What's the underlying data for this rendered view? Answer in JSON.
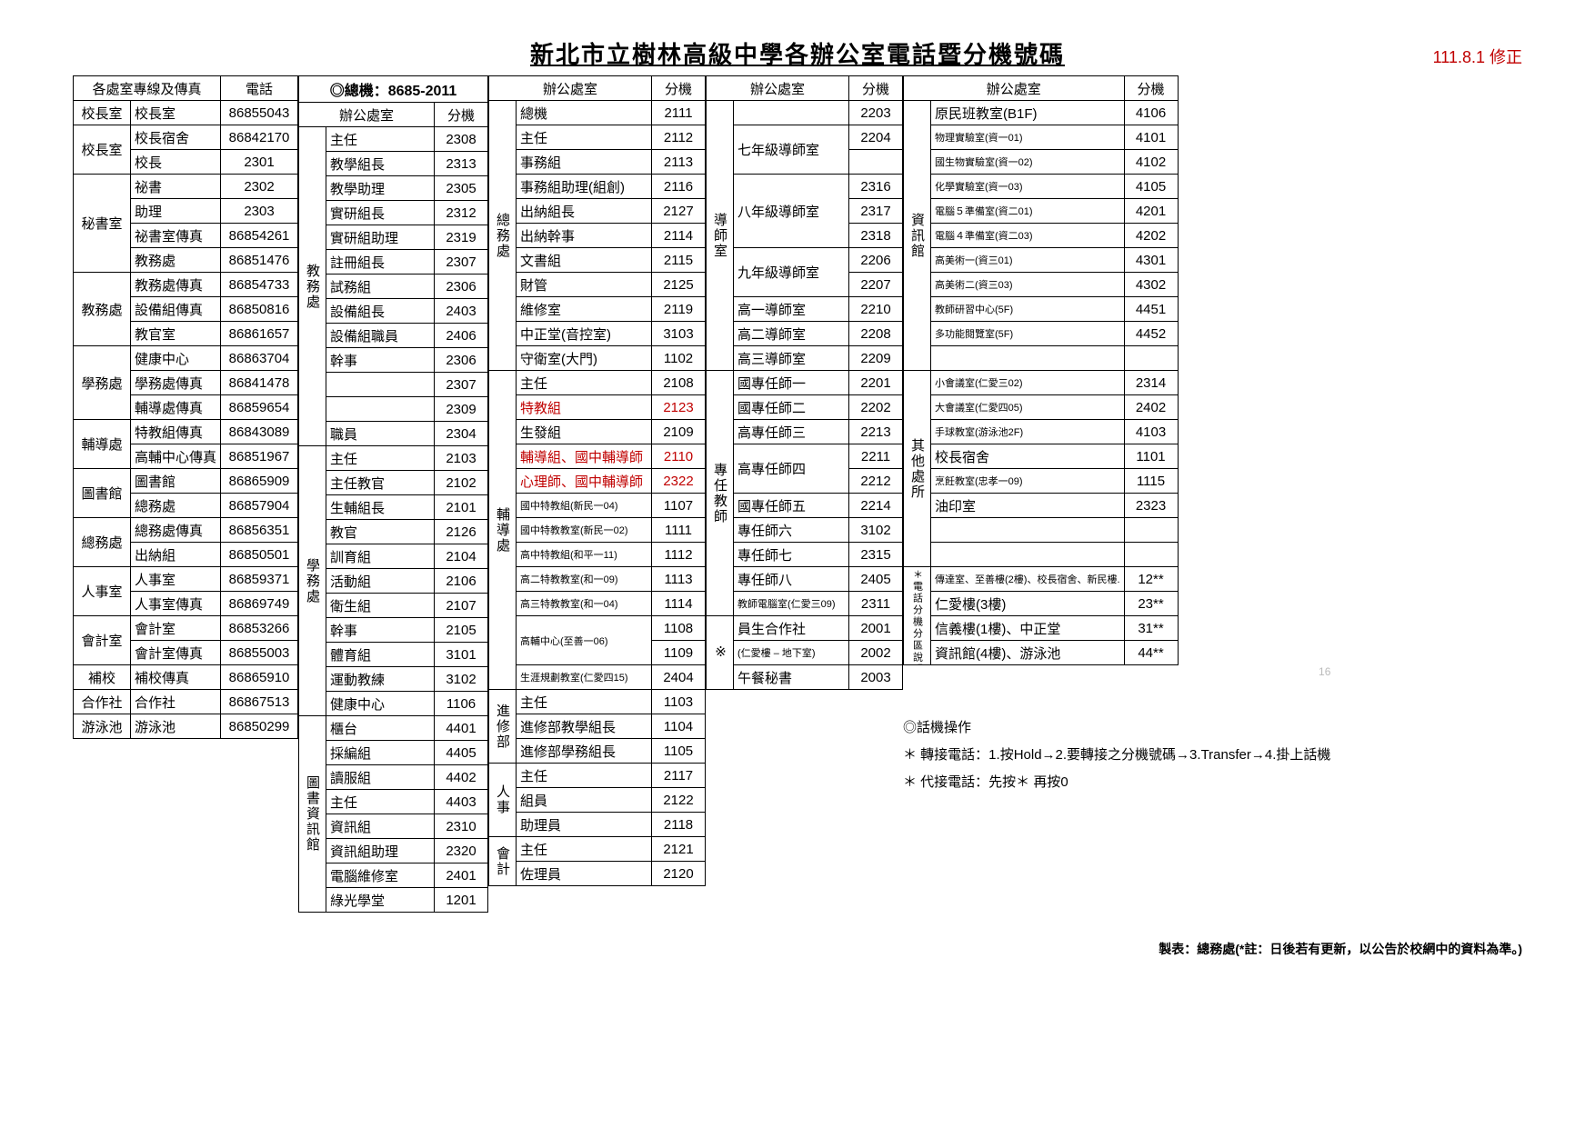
{
  "title": "新北市立樹林高級中學各辦公室電話暨分機號碼",
  "date_note": "111.8.1 修正",
  "main_ext": "◎總機：8685-2011",
  "headers": {
    "dept_line_fax": "各處室專線及傳真",
    "phone": "電話",
    "office": "辦公處室",
    "ext": "分機"
  },
  "col1": [
    {
      "dept": "校長室",
      "name": "校長室",
      "tel": "86855043"
    },
    {
      "dept": "校長室",
      "name": "校長宿舍",
      "tel": "86842170"
    },
    {
      "dept": "",
      "name": "校長",
      "tel": "2301"
    },
    {
      "dept": "秘書室",
      "name": "祕書",
      "tel": "2302"
    },
    {
      "dept": "",
      "name": "助理",
      "tel": "2303"
    },
    {
      "dept": "",
      "name": "祕書室傳真",
      "tel": "86854261"
    },
    {
      "dept": "",
      "name": "教務處",
      "tel": "86851476"
    },
    {
      "dept": "教務處",
      "name": "教務處傳真",
      "tel": "86854733"
    },
    {
      "dept": "",
      "name": "設備組傳真",
      "tel": "86850816"
    },
    {
      "dept": "",
      "name": "教官室",
      "tel": "86861657"
    },
    {
      "dept": "學務處",
      "name": "健康中心",
      "tel": "86863704"
    },
    {
      "dept": "",
      "name": "學務處傳真",
      "tel": "86841478"
    },
    {
      "dept": "",
      "name": "輔導處傳真",
      "tel": "86859654"
    },
    {
      "dept": "輔導處",
      "name": "特教組傳真",
      "tel": "86843089"
    },
    {
      "dept": "",
      "name": "高輔中心傳真",
      "tel": "86851967"
    },
    {
      "dept": "圖書館",
      "name": "圖書館",
      "tel": "86865909"
    },
    {
      "dept": "",
      "name": "總務處",
      "tel": "86857904"
    },
    {
      "dept": "總務處",
      "name": "總務處傳真",
      "tel": "86856351"
    },
    {
      "dept": "",
      "name": "出納組",
      "tel": "86850501"
    },
    {
      "dept": "人事室",
      "name": "人事室",
      "tel": "86859371"
    },
    {
      "dept": "",
      "name": "人事室傳真",
      "tel": "86869749"
    },
    {
      "dept": "會計室",
      "name": "會計室",
      "tel": "86853266"
    },
    {
      "dept": "",
      "name": "會計室傳真",
      "tel": "86855003"
    },
    {
      "dept": "補校",
      "name": "補校傳真",
      "tel": "86865910"
    },
    {
      "dept": "合作社",
      "name": "合作社",
      "tel": "86867513"
    },
    {
      "dept": "游泳池",
      "name": "游泳池",
      "tel": "86850299"
    }
  ],
  "block2": {
    "groups": [
      {
        "vlabel": "教務處",
        "rows": [
          {
            "n": "主任",
            "e": "2308"
          },
          {
            "n": "教學組長",
            "e": "2313"
          },
          {
            "n": "教學助理",
            "e": "2305"
          },
          {
            "n": "實研組長",
            "e": "2312"
          },
          {
            "n": "實研組助理",
            "e": "2319"
          },
          {
            "n": "註冊組長",
            "e": "2307"
          },
          {
            "n": "試務組",
            "e": "2306"
          },
          {
            "n": "設備組長",
            "e": "2403"
          },
          {
            "n": "設備組職員",
            "e": "2406"
          },
          {
            "n": "幹事",
            "e": "2306"
          },
          {
            "n": "",
            "e": "2307"
          },
          {
            "n": "",
            "e": "2309"
          },
          {
            "n": "職員",
            "e": "2304"
          }
        ]
      },
      {
        "vlabel": "學務處",
        "rows": [
          {
            "n": "主任",
            "e": "2103"
          },
          {
            "n": "主任教官",
            "e": "2102"
          },
          {
            "n": "生輔組長",
            "e": "2101"
          },
          {
            "n": "教官",
            "e": "2126"
          },
          {
            "n": "訓育組",
            "e": "2104"
          },
          {
            "n": "活動組",
            "e": "2106"
          },
          {
            "n": "衛生組",
            "e": "2107"
          },
          {
            "n": "幹事",
            "e": "2105"
          },
          {
            "n": "體育組",
            "e": "3101"
          },
          {
            "n": "運動教練",
            "e": "3102"
          },
          {
            "n": "健康中心",
            "e": "1106"
          }
        ]
      },
      {
        "vlabel": "圖書資訊館",
        "rows": [
          {
            "n": "櫃台",
            "e": "4401"
          },
          {
            "n": "採編組",
            "e": "4405"
          },
          {
            "n": "讀服組",
            "e": "4402"
          },
          {
            "n": "主任",
            "e": "4403"
          },
          {
            "n": "資訊組",
            "e": "2310"
          },
          {
            "n": "資訊組助理",
            "e": "2320"
          },
          {
            "n": "電腦維修室",
            "e": "2401"
          },
          {
            "n": "綠光學堂",
            "e": "1201"
          }
        ]
      }
    ]
  },
  "block3": {
    "groups": [
      {
        "vlabel": "總務處",
        "rows": [
          {
            "n": "總機",
            "e": "2111"
          },
          {
            "n": "主任",
            "e": "2112"
          },
          {
            "n": "事務組",
            "e": "2113"
          },
          {
            "n": "事務組助理(組創)",
            "e": "2116"
          },
          {
            "n": "出納組長",
            "e": "2127"
          },
          {
            "n": "出納幹事",
            "e": "2114"
          },
          {
            "n": "文書組",
            "e": "2115"
          },
          {
            "n": "財管",
            "e": "2125"
          },
          {
            "n": "維修室",
            "e": "2119"
          },
          {
            "n": "中正堂(音控室)",
            "e": "3103"
          },
          {
            "n": "守衛室(大門)",
            "e": "1102"
          }
        ]
      },
      {
        "vlabel": "輔導處",
        "rows": [
          {
            "n": "主任",
            "e": "2108"
          },
          {
            "n": "特教組",
            "e": "2123",
            "red": true
          },
          {
            "n": "生發組",
            "e": "2109"
          },
          {
            "n": "輔導組、國中輔導師",
            "e": "2110",
            "red": true
          },
          {
            "n": "心理師、國中輔導師",
            "e": "2322",
            "red": true
          },
          {
            "n": "國中特教組(新民一04)",
            "e": "1107",
            "sm": true
          },
          {
            "n": "國中特教教室(新民一02)",
            "e": "1111",
            "sm": true
          },
          {
            "n": "高中特教組(和平一11)",
            "e": "1112",
            "sm": true
          },
          {
            "n": "高二特教教室(和一09)",
            "e": "1113",
            "sm": true
          },
          {
            "n": "高三特教教室(和一04)",
            "e": "1114",
            "sm": true
          },
          {
            "n": "高輔中心(至善一06)",
            "e": "1108",
            "sm": true,
            "rs": 2
          },
          {
            "e": "1109"
          },
          {
            "n": "生涯規劃教室(仁愛四15)",
            "e": "2404",
            "sm": true
          }
        ]
      },
      {
        "vlabel": "進修部",
        "rows": [
          {
            "n": "主任",
            "e": "1103"
          },
          {
            "n": "進修部教學組長",
            "e": "1104"
          },
          {
            "n": "進修部學務組長",
            "e": "1105"
          }
        ]
      },
      {
        "vlabel": "人事",
        "rows": [
          {
            "n": "主任",
            "e": "2117"
          },
          {
            "n": "組員",
            "e": "2122"
          },
          {
            "n": "助理員",
            "e": "2118"
          }
        ]
      },
      {
        "vlabel": "會計",
        "rows": [
          {
            "n": "主任",
            "e": "2121"
          },
          {
            "n": "佐理員",
            "e": "2120"
          }
        ]
      }
    ]
  },
  "block4": {
    "groups": [
      {
        "vlabel": "導師室",
        "rows": [
          {
            "n": "",
            "e": "2203"
          },
          {
            "n": "七年級導師室",
            "e": "2204",
            "rs": 2
          },
          {
            "e": ""
          },
          {
            "n": "八年級導師室",
            "e": "2316",
            "rs": 3
          },
          {
            "e": "2317"
          },
          {
            "e": "2318"
          },
          {
            "n": "九年級導師室",
            "e": "2206",
            "rs": 2
          },
          {
            "e": "2207"
          },
          {
            "n": "高一導師室",
            "e": "2210"
          },
          {
            "n": "高二導師室",
            "e": "2208"
          },
          {
            "n": "高三導師室",
            "e": "2209"
          }
        ]
      },
      {
        "vlabel": "專任教師",
        "rows": [
          {
            "n": "國專任師一",
            "e": "2201"
          },
          {
            "n": "國專任師二",
            "e": "2202"
          },
          {
            "n": "高專任師三",
            "e": "2213"
          },
          {
            "n": "高專任師四",
            "e": "2211",
            "rs": 2
          },
          {
            "e": "2212"
          },
          {
            "n": "國專任師五",
            "e": "2214"
          },
          {
            "n": "專任師六",
            "e": "3102"
          },
          {
            "n": "專任師七",
            "e": "2315"
          },
          {
            "n": "專任師八",
            "e": "2405"
          },
          {
            "n": "教師電腦室(仁愛三09)",
            "e": "2311",
            "sm": true
          }
        ]
      },
      {
        "vlabel": "※",
        "rows": [
          {
            "n": "員生合作社",
            "e": "2001"
          },
          {
            "n": "(仁愛樓 – 地下室)",
            "e": "2002",
            "sm": true
          },
          {
            "n": "午餐秘書",
            "e": "2003"
          }
        ]
      }
    ]
  },
  "block5": {
    "groups": [
      {
        "vlabel": "資訊館",
        "rows": [
          {
            "n": "原民班教室(B1F)",
            "e": "4106"
          },
          {
            "n": "物理實驗室(資一01)",
            "e": "4101",
            "sm": true
          },
          {
            "n": "國生物實驗室(資一02)",
            "e": "4102",
            "sm": true
          },
          {
            "n": "化學實驗室(資一03)",
            "e": "4105",
            "sm": true
          },
          {
            "n": "電腦５準備室(資二01)",
            "e": "4201",
            "sm": true
          },
          {
            "n": "電腦４準備室(資二03)",
            "e": "4202",
            "sm": true
          },
          {
            "n": "高美術一(資三01)",
            "e": "4301",
            "sm": true
          },
          {
            "n": "高美術二(資三03)",
            "e": "4302",
            "sm": true
          },
          {
            "n": "教師研習中心(5F)",
            "e": "4451",
            "sm": true
          },
          {
            "n": "多功能閱覽室(5F)",
            "e": "4452",
            "sm": true
          },
          {
            "n": "",
            "e": ""
          }
        ]
      },
      {
        "vlabel": "其他處所",
        "rows": [
          {
            "n": "小會議室(仁愛三02)",
            "e": "2314",
            "sm": true
          },
          {
            "n": "大會議室(仁愛四05)",
            "e": "2402",
            "sm": true
          },
          {
            "n": "手球教室(游泳池2F)",
            "e": "4103",
            "sm": true
          },
          {
            "n": "校長宿舍",
            "e": "1101"
          },
          {
            "n": "烹飪教室(忠孝一09)",
            "e": "1115",
            "sm": true
          },
          {
            "n": "油印室",
            "e": "2323"
          },
          {
            "n": "",
            "e": ""
          },
          {
            "n": "",
            "e": ""
          }
        ]
      },
      {
        "vlabel": "＊電話分機分區說明＊",
        "small": true,
        "rows": [
          {
            "n": "傳達室、至善樓(2樓)、校長宿舍、新民樓.",
            "e": "12**",
            "sm": true
          },
          {
            "n": "仁愛樓(3樓)",
            "e": "23**"
          },
          {
            "n": "信義樓(1樓)、中正堂",
            "e": "31**"
          },
          {
            "n": "資訊館(4樓)、游泳池",
            "e": "44**"
          }
        ]
      }
    ]
  },
  "notes": {
    "header": "◎話機操作",
    "line1": "＊ 轉接電話：1.按Hold→2.要轉接之分機號碼→3.Transfer→4.掛上話機",
    "line2": "＊ 代接電話：先按＊ 再按0"
  },
  "footer": "製表：總務處(*註：日後若有更新，以公告於校網中的資料為準。)",
  "faint": "16"
}
